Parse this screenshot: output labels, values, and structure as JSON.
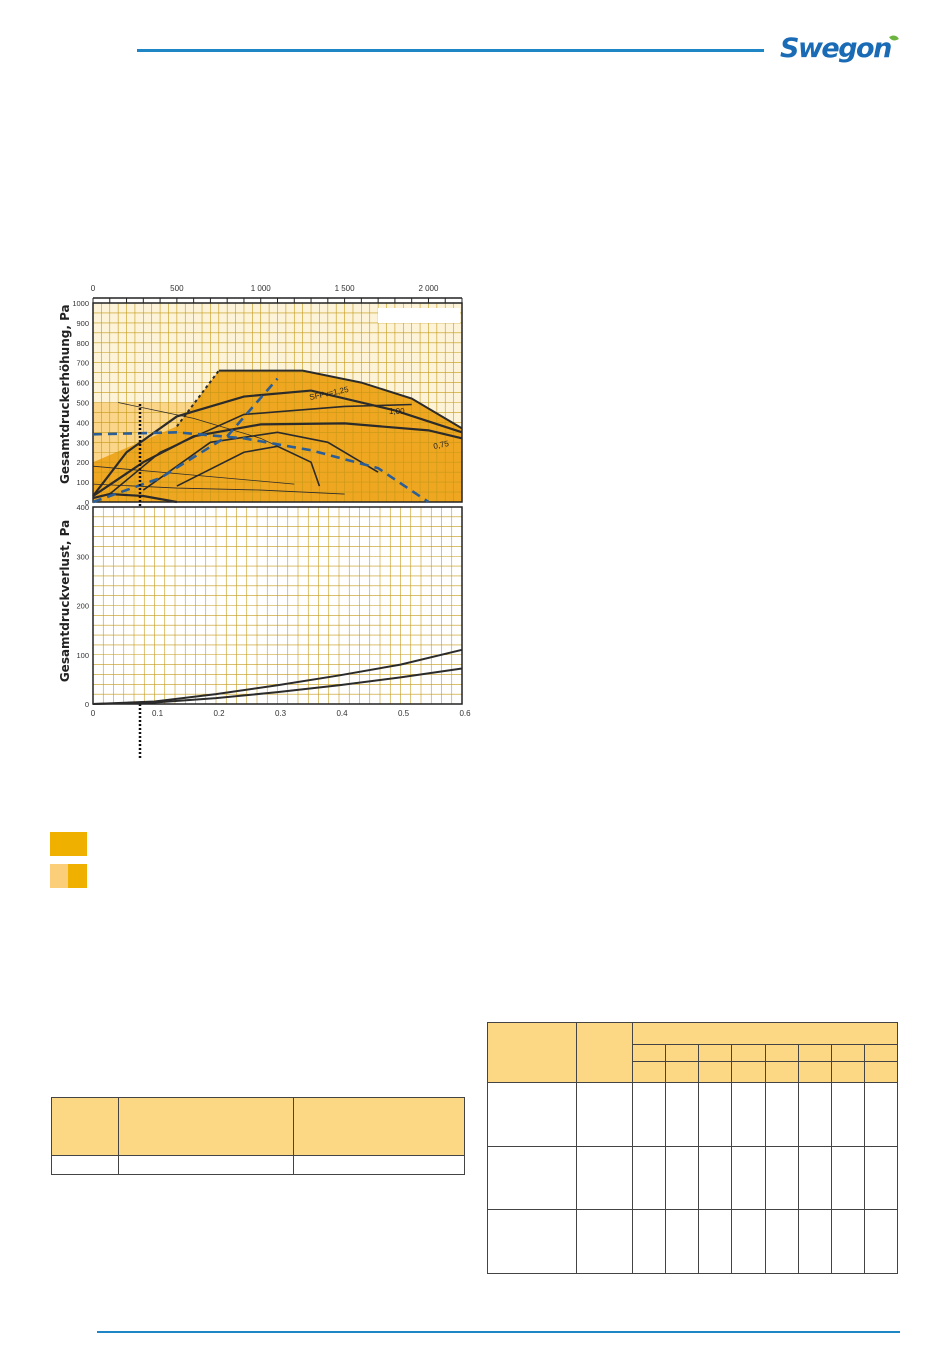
{
  "brand": {
    "logo_text": "Swegon",
    "accent_color": "#1f86c6",
    "logo_color": "#1a6bb5"
  },
  "colors": {
    "area_dark": "#efa620",
    "area_light": "#fbd68a",
    "grid": "#c49a18",
    "curve": "#2b2b2b",
    "dashed": "#2b5e97"
  },
  "chart_data": {
    "type": "line",
    "top_panel": {
      "ylabel": "Gesamtdruckerhöhung, Pa",
      "x_ticks": [
        "0",
        "500",
        "1 000",
        "1 500",
        "2 000"
      ],
      "y_ticks": [
        "0",
        "100",
        "200",
        "300",
        "400",
        "500",
        "600",
        "700",
        "800",
        "900",
        "1000"
      ],
      "xlim": [
        0,
        2200
      ],
      "ylim": [
        0,
        1000
      ],
      "annotations": [
        "SFPv=1,25",
        "1,00",
        "0,75"
      ],
      "series": [
        {
          "x": [
            0,
            200,
            500,
            900,
            1300,
            1800,
            2200
          ],
          "y": [
            30,
            250,
            430,
            530,
            560,
            460,
            350
          ]
        },
        {
          "x": [
            0,
            300,
            600,
            1000,
            1500,
            2000,
            2200
          ],
          "y": [
            30,
            200,
            330,
            390,
            395,
            360,
            320
          ]
        },
        {
          "x": [
            0,
            100,
            300,
            500
          ],
          "y": [
            20,
            40,
            30,
            0
          ]
        }
      ]
    },
    "bottom_panel": {
      "ylabel": "Gesamtdruckverlust, Pa",
      "x_ticks": [
        "0",
        "0.1",
        "0.2",
        "0.3",
        "0.4",
        "0.5",
        "0.6"
      ],
      "y_ticks": [
        "0",
        "100",
        "200",
        "300",
        "400"
      ],
      "xlim": [
        0,
        0.6
      ],
      "ylim": [
        0,
        400
      ],
      "series": [
        {
          "x": [
            0,
            0.1,
            0.2,
            0.3,
            0.4,
            0.5,
            0.6
          ],
          "y": [
            0,
            5,
            20,
            38,
            58,
            80,
            110
          ]
        },
        {
          "x": [
            0,
            0.1,
            0.2,
            0.3,
            0.4,
            0.5,
            0.6
          ],
          "y": [
            0,
            3,
            12,
            24,
            38,
            54,
            72
          ]
        }
      ]
    }
  }
}
